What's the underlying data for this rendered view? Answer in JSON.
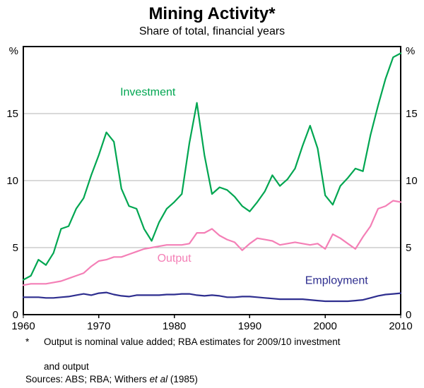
{
  "header": {
    "title": "Mining Activity*",
    "subtitle": "Share of total, financial years"
  },
  "footnotes": {
    "asterisk": "*",
    "note_line1": "Output is nominal value added; RBA estimates for 2009/10 investment",
    "note_line2": "and output",
    "sources_prefix": "Sources: ABS; RBA; Withers ",
    "sources_italic": "et al",
    "sources_suffix": " (1985)"
  },
  "chart_data": {
    "type": "line",
    "title": "Mining Activity*",
    "subtitle": "Share of total, financial years",
    "unit_left": "%",
    "unit_right": "%",
    "grid": "horizontal",
    "legend_position": "inline-labels",
    "ylim": [
      0,
      20
    ],
    "yticks": [
      0,
      5,
      10,
      15
    ],
    "gridlines": [
      5,
      10,
      15
    ],
    "xticks": [
      1960,
      1970,
      1980,
      1990,
      2000,
      2010
    ],
    "x": [
      1960,
      1961,
      1962,
      1963,
      1964,
      1965,
      1966,
      1967,
      1968,
      1969,
      1970,
      1971,
      1972,
      1973,
      1974,
      1975,
      1976,
      1977,
      1978,
      1979,
      1980,
      1981,
      1982,
      1983,
      1984,
      1985,
      1986,
      1987,
      1988,
      1989,
      1990,
      1991,
      1992,
      1993,
      1994,
      1995,
      1996,
      1997,
      1998,
      1999,
      2000,
      2001,
      2002,
      2003,
      2004,
      2005,
      2006,
      2007,
      2008,
      2009,
      2010
    ],
    "series": [
      {
        "name": "Investment",
        "color": "#00a651",
        "values": [
          2.6,
          2.9,
          4.1,
          3.7,
          4.6,
          6.4,
          6.6,
          7.9,
          8.7,
          10.4,
          11.9,
          13.6,
          12.9,
          9.4,
          8.1,
          7.9,
          6.4,
          5.5,
          6.9,
          7.9,
          8.4,
          9.0,
          12.8,
          15.8,
          11.9,
          9.0,
          9.5,
          9.3,
          8.8,
          8.1,
          7.7,
          8.4,
          9.2,
          10.4,
          9.6,
          10.1,
          10.9,
          12.6,
          14.1,
          12.4,
          8.9,
          8.2,
          9.6,
          10.2,
          10.9,
          10.7,
          13.4,
          15.6,
          17.6,
          19.2,
          19.5
        ]
      },
      {
        "name": "Output",
        "color": "#f47fb6",
        "values": [
          2.2,
          2.3,
          2.3,
          2.3,
          2.4,
          2.5,
          2.7,
          2.9,
          3.1,
          3.6,
          4.0,
          4.1,
          4.3,
          4.3,
          4.5,
          4.7,
          4.9,
          5.0,
          5.1,
          5.2,
          5.2,
          5.2,
          5.3,
          6.1,
          6.1,
          6.4,
          5.9,
          5.6,
          5.4,
          4.8,
          5.3,
          5.7,
          5.6,
          5.5,
          5.2,
          5.3,
          5.4,
          5.3,
          5.2,
          5.3,
          4.9,
          6.0,
          5.7,
          5.3,
          4.9,
          5.8,
          6.6,
          7.9,
          8.1,
          8.5,
          8.4
        ]
      },
      {
        "name": "Employment",
        "color": "#2e2e8f",
        "values": [
          1.3,
          1.3,
          1.3,
          1.25,
          1.25,
          1.3,
          1.35,
          1.45,
          1.55,
          1.45,
          1.6,
          1.65,
          1.5,
          1.4,
          1.35,
          1.45,
          1.45,
          1.45,
          1.45,
          1.5,
          1.5,
          1.55,
          1.55,
          1.45,
          1.4,
          1.45,
          1.4,
          1.3,
          1.3,
          1.35,
          1.35,
          1.3,
          1.25,
          1.2,
          1.15,
          1.15,
          1.15,
          1.15,
          1.1,
          1.05,
          1.0,
          1.0,
          1.0,
          1.0,
          1.05,
          1.1,
          1.25,
          1.4,
          1.5,
          1.55,
          1.6
        ]
      }
    ],
    "labels": [
      {
        "text": "Investment",
        "x": 1976.5,
        "y": 16.6,
        "series": 0
      },
      {
        "text": "Output",
        "x": 1980,
        "y": 4.2,
        "series": 1
      },
      {
        "text": "Employment",
        "x": 2001.5,
        "y": 2.55,
        "series": 2
      }
    ],
    "colors": {
      "axis": "#000000",
      "grid": "#b3b3b3"
    }
  }
}
